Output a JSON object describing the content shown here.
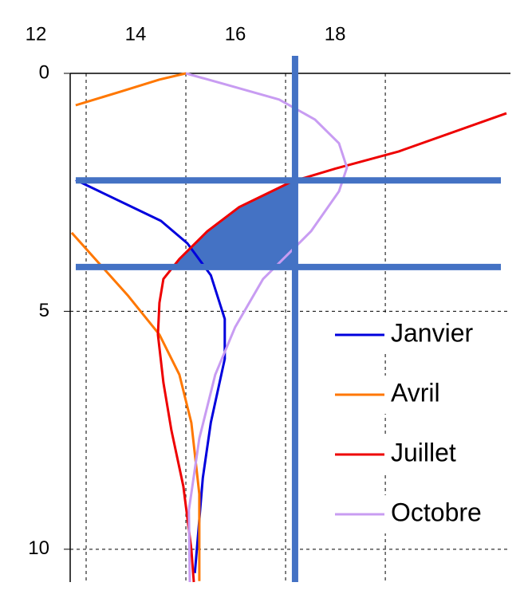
{
  "chart_data": {
    "type": "line",
    "xlim": [
      11.68,
      20.51
    ],
    "xticks": [
      12,
      14,
      16,
      18
    ],
    "ylim": [
      0,
      10.69
    ],
    "yticks": [
      0,
      5,
      10
    ],
    "y_inverted": true,
    "grid": true,
    "legend": "lower-right",
    "series": [
      {
        "name": "Janvier",
        "color": "#0000dd",
        "x": [
          11.79,
          13.5,
          14.03,
          14.5,
          14.78,
          14.78,
          14.5,
          14.34,
          14.18
        ],
        "y": [
          2.24,
          3.1,
          3.57,
          4.24,
          5.16,
          6.0,
          7.34,
          8.5,
          10.5
        ]
      },
      {
        "name": "Avril",
        "color": "#ff7700",
        "x": [
          14.0,
          13.47,
          12.67,
          11.79,
          null,
          11.71,
          12.83,
          13.47,
          13.87,
          14.11,
          14.27,
          14.27
        ],
        "y": [
          0.0,
          0.13,
          0.39,
          0.67,
          null,
          3.35,
          4.66,
          5.49,
          6.33,
          7.34,
          8.84,
          10.67
        ]
      },
      {
        "name": "Juillet",
        "color": "#ee0000",
        "x": [
          20.43,
          18.27,
          17.0,
          16.11,
          15.07,
          14.43,
          13.87,
          13.55,
          13.47,
          13.44,
          13.55,
          13.71,
          13.95,
          14.11,
          14.16
        ],
        "y": [
          0.84,
          1.64,
          2.0,
          2.28,
          2.81,
          3.32,
          3.9,
          4.32,
          4.82,
          5.49,
          6.5,
          7.5,
          8.68,
          10.0,
          10.69
        ]
      },
      {
        "name": "Octobre",
        "color": "#c89cf2",
        "x": [
          14.0,
          14.75,
          15.87,
          16.59,
          17.07,
          17.23,
          17.07,
          16.51,
          15.55,
          14.99,
          14.59,
          14.27,
          14.06,
          14.08
        ],
        "y": [
          0.0,
          0.22,
          0.55,
          0.97,
          1.47,
          1.98,
          2.48,
          3.32,
          4.32,
          5.33,
          6.33,
          7.67,
          9.18,
          10.69
        ]
      }
    ],
    "reference_lines": {
      "color": "#4472c4",
      "x": 16.19,
      "y": [
        2.25,
        4.07
      ]
    }
  }
}
